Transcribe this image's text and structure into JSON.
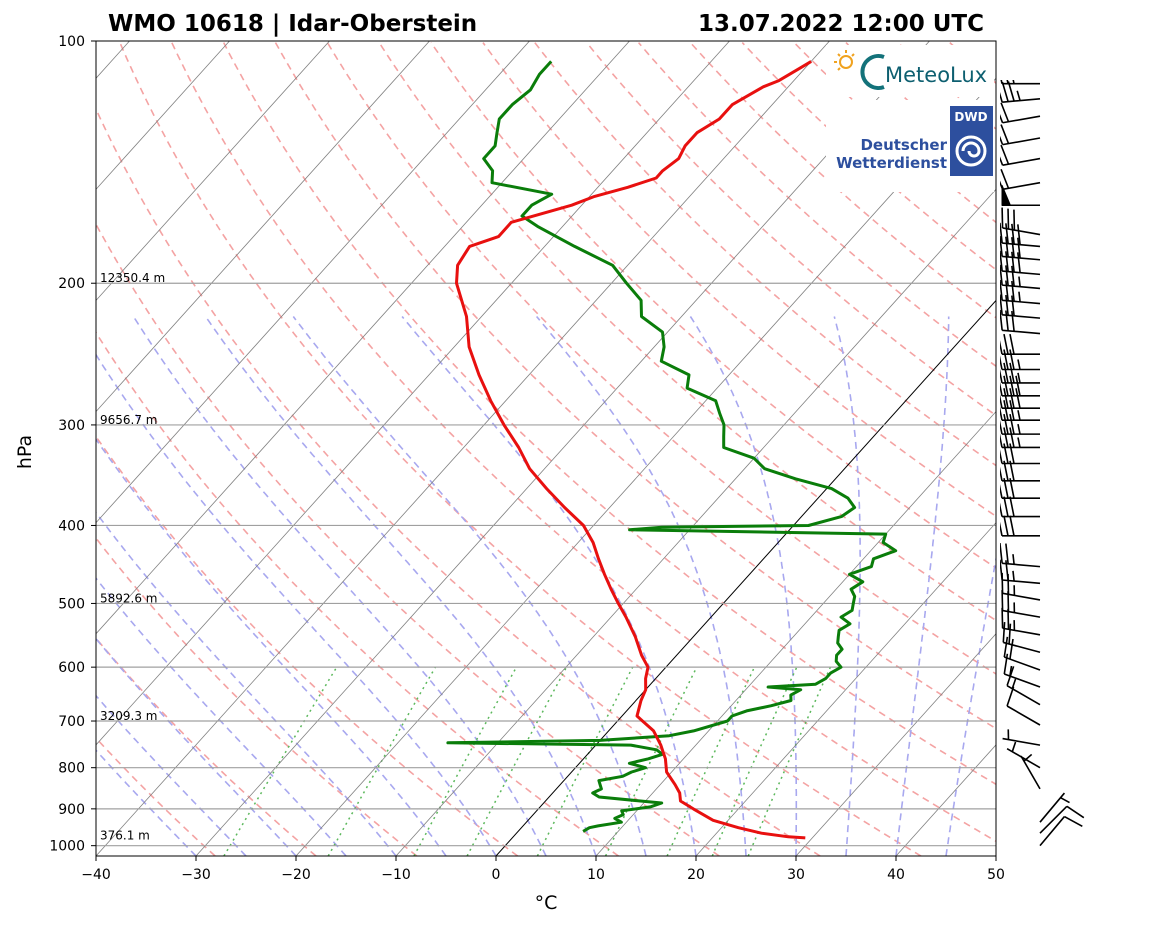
{
  "title_left": "WMO 10618 | Idar-Oberstein",
  "title_right": "13.07.2022 12:00 UTC",
  "logos": {
    "meteolux": "MeteoLux",
    "dwd_badge": "DWD",
    "dwd_line1": "Deutscher",
    "dwd_line2": "Wetterdienst"
  },
  "colors": {
    "temperature": "#e8100f",
    "dewpoint": "#0a7d0a",
    "dry_adiabat": "#f4a3a3",
    "moist_adiabat": "#a8a8ef",
    "mixing_ratio": "#5cb85c",
    "isotherm": "#808080",
    "isobar": "#a0a0a0"
  },
  "chart_data": {
    "type": "skew-t",
    "xlabel": "°C",
    "ylabel": "hPa",
    "xlim": [
      -40,
      50
    ],
    "ylim": [
      1030,
      100
    ],
    "y_scale": "log",
    "x_ticks": [
      -40,
      -30,
      -20,
      -10,
      0,
      10,
      20,
      30,
      40,
      50
    ],
    "x_tick_labels": [
      "−40",
      "−30",
      "−20",
      "−10",
      "0",
      "10",
      "20",
      "30",
      "40",
      "50"
    ],
    "y_ticks": [
      100,
      200,
      300,
      400,
      500,
      600,
      700,
      800,
      900,
      1000
    ],
    "y_tick_labels": [
      "100",
      "200",
      "300",
      "400",
      "500",
      "600",
      "700",
      "800",
      "900",
      "1000"
    ],
    "height_labels": [
      {
        "p": 200,
        "text": "12350.4 m"
      },
      {
        "p": 300,
        "text": "9656.7 m"
      },
      {
        "p": 500,
        "text": "5892.6 m"
      },
      {
        "p": 700,
        "text": "3209.3 m"
      },
      {
        "p": 985,
        "text": "376.1 m"
      }
    ],
    "highlighted_isotherm": 0,
    "temperature_profile": [
      [
        978,
        29.3
      ],
      [
        975,
        27.5
      ],
      [
        965,
        24.5
      ],
      [
        950,
        21.7
      ],
      [
        930,
        18.5
      ],
      [
        900,
        15.5
      ],
      [
        880,
        13.5
      ],
      [
        860,
        12.7
      ],
      [
        840,
        11.5
      ],
      [
        810,
        9.5
      ],
      [
        780,
        8.2
      ],
      [
        750,
        6.5
      ],
      [
        720,
        4.5
      ],
      [
        700,
        2.5
      ],
      [
        690,
        1.5
      ],
      [
        660,
        0.5
      ],
      [
        640,
        0
      ],
      [
        620,
        -1
      ],
      [
        600,
        -1.8
      ],
      [
        580,
        -3.5
      ],
      [
        550,
        -5.8
      ],
      [
        520,
        -8.5
      ],
      [
        500,
        -10.5
      ],
      [
        480,
        -12.5
      ],
      [
        460,
        -14.5
      ],
      [
        440,
        -16.5
      ],
      [
        420,
        -18.5
      ],
      [
        400,
        -21
      ],
      [
        380,
        -24.5
      ],
      [
        360,
        -28
      ],
      [
        340,
        -31.5
      ],
      [
        320,
        -34.5
      ],
      [
        300,
        -38
      ],
      [
        280,
        -41.5
      ],
      [
        260,
        -45
      ],
      [
        240,
        -48.5
      ],
      [
        220,
        -51.5
      ],
      [
        200,
        -55.5
      ],
      [
        190,
        -57
      ],
      [
        180,
        -57.5
      ],
      [
        175,
        -55.5
      ],
      [
        168,
        -55.5
      ],
      [
        160,
        -51
      ],
      [
        156,
        -49.5
      ],
      [
        152,
        -47
      ],
      [
        148,
        -45
      ],
      [
        145,
        -45
      ],
      [
        140,
        -44.5
      ],
      [
        135,
        -45
      ],
      [
        130,
        -45
      ],
      [
        125,
        -44
      ],
      [
        120,
        -44
      ],
      [
        118,
        -43.5
      ],
      [
        114,
        -42.5
      ],
      [
        112,
        -41.5
      ],
      [
        110,
        -41
      ],
      [
        108,
        -40.5
      ],
      [
        106,
        -40
      ]
    ],
    "dewpoint_profile": [
      [
        960,
        6.5
      ],
      [
        950,
        6.8
      ],
      [
        945,
        7.5
      ],
      [
        935,
        9.5
      ],
      [
        925,
        8.5
      ],
      [
        915,
        9
      ],
      [
        905,
        8.5
      ],
      [
        895,
        11
      ],
      [
        885,
        11.8
      ],
      [
        880,
        9.5
      ],
      [
        870,
        5
      ],
      [
        860,
        4
      ],
      [
        850,
        4.5
      ],
      [
        840,
        4
      ],
      [
        830,
        3.5
      ],
      [
        820,
        5.5
      ],
      [
        810,
        6
      ],
      [
        800,
        7
      ],
      [
        790,
        5
      ],
      [
        780,
        6.5
      ],
      [
        770,
        7.5
      ],
      [
        760,
        6.5
      ],
      [
        750,
        3.5
      ],
      [
        745,
        -15
      ],
      [
        740,
        0
      ],
      [
        730,
        6.5
      ],
      [
        720,
        8.5
      ],
      [
        700,
        11
      ],
      [
        690,
        11
      ],
      [
        680,
        12
      ],
      [
        670,
        14
      ],
      [
        660,
        15.5
      ],
      [
        650,
        15
      ],
      [
        640,
        15.5
      ],
      [
        635,
        12
      ],
      [
        630,
        16.5
      ],
      [
        620,
        17
      ],
      [
        610,
        17
      ],
      [
        600,
        17.5
      ],
      [
        590,
        16.5
      ],
      [
        580,
        16
      ],
      [
        570,
        16
      ],
      [
        560,
        15
      ],
      [
        550,
        14.5
      ],
      [
        540,
        14
      ],
      [
        530,
        14.5
      ],
      [
        520,
        13
      ],
      [
        510,
        13.5
      ],
      [
        500,
        13
      ],
      [
        490,
        12.5
      ],
      [
        480,
        11.5
      ],
      [
        470,
        12
      ],
      [
        460,
        10
      ],
      [
        450,
        11.5
      ],
      [
        440,
        11
      ],
      [
        430,
        12.5
      ],
      [
        420,
        10.5
      ],
      [
        410,
        10
      ],
      [
        405,
        -16
      ],
      [
        402,
        -13
      ],
      [
        400,
        1.5
      ],
      [
        390,
        4
      ],
      [
        380,
        4.5
      ],
      [
        370,
        3
      ],
      [
        360,
        0.5
      ],
      [
        350,
        -4
      ],
      [
        340,
        -8
      ],
      [
        330,
        -10
      ],
      [
        320,
        -14
      ],
      [
        310,
        -15
      ],
      [
        300,
        -16
      ],
      [
        290,
        -17.5
      ],
      [
        280,
        -19
      ],
      [
        270,
        -23
      ],
      [
        260,
        -24
      ],
      [
        250,
        -28
      ],
      [
        240,
        -29
      ],
      [
        230,
        -30.5
      ],
      [
        220,
        -34
      ],
      [
        210,
        -35.5
      ],
      [
        200,
        -38.5
      ],
      [
        190,
        -41.5
      ],
      [
        180,
        -47
      ],
      [
        170,
        -52.5
      ],
      [
        165,
        -55
      ],
      [
        160,
        -55
      ],
      [
        155,
        -54
      ],
      [
        150,
        -61
      ],
      [
        145,
        -62
      ],
      [
        140,
        -64
      ],
      [
        135,
        -64
      ],
      [
        130,
        -65
      ],
      [
        125,
        -66
      ],
      [
        120,
        -66
      ],
      [
        115,
        -65.5
      ],
      [
        110,
        -66
      ],
      [
        106,
        -66
      ]
    ],
    "wind_barbs": [
      {
        "p": 107,
        "dir": 270,
        "spd": 20
      },
      {
        "p": 113,
        "dir": 270,
        "spd": 25
      },
      {
        "p": 118,
        "dir": 265,
        "spd": 35
      },
      {
        "p": 124,
        "dir": 260,
        "spd": 20
      },
      {
        "p": 132,
        "dir": 260,
        "spd": 20
      },
      {
        "p": 140,
        "dir": 260,
        "spd": 20
      },
      {
        "p": 150,
        "dir": 260,
        "spd": 20
      },
      {
        "p": 160,
        "dir": 270,
        "spd": 50
      },
      {
        "p": 174,
        "dir": 280,
        "spd": 30
      },
      {
        "p": 180,
        "dir": 275,
        "spd": 40
      },
      {
        "p": 187,
        "dir": 275,
        "spd": 40
      },
      {
        "p": 195,
        "dir": 275,
        "spd": 40
      },
      {
        "p": 203,
        "dir": 275,
        "spd": 35
      },
      {
        "p": 212,
        "dir": 275,
        "spd": 35
      },
      {
        "p": 221,
        "dir": 275,
        "spd": 30
      },
      {
        "p": 231,
        "dir": 275,
        "spd": 30
      },
      {
        "p": 245,
        "dir": 270,
        "spd": 30
      },
      {
        "p": 256,
        "dir": 270,
        "spd": 35
      },
      {
        "p": 266,
        "dir": 270,
        "spd": 35
      },
      {
        "p": 276,
        "dir": 270,
        "spd": 40
      },
      {
        "p": 286,
        "dir": 270,
        "spd": 40
      },
      {
        "p": 296,
        "dir": 270,
        "spd": 35
      },
      {
        "p": 308,
        "dir": 270,
        "spd": 35
      },
      {
        "p": 320,
        "dir": 270,
        "spd": 35
      },
      {
        "p": 335,
        "dir": 270,
        "spd": 30
      },
      {
        "p": 352,
        "dir": 270,
        "spd": 30
      },
      {
        "p": 370,
        "dir": 270,
        "spd": 30
      },
      {
        "p": 390,
        "dir": 270,
        "spd": 30
      },
      {
        "p": 412,
        "dir": 270,
        "spd": 30
      },
      {
        "p": 450,
        "dir": 275,
        "spd": 25
      },
      {
        "p": 472,
        "dir": 275,
        "spd": 25
      },
      {
        "p": 495,
        "dir": 280,
        "spd": 25
      },
      {
        "p": 520,
        "dir": 280,
        "spd": 25
      },
      {
        "p": 547,
        "dir": 280,
        "spd": 25
      },
      {
        "p": 575,
        "dir": 285,
        "spd": 20
      },
      {
        "p": 605,
        "dir": 290,
        "spd": 20
      },
      {
        "p": 635,
        "dir": 290,
        "spd": 15
      },
      {
        "p": 668,
        "dir": 300,
        "spd": 15
      },
      {
        "p": 708,
        "dir": 300,
        "spd": 10
      },
      {
        "p": 750,
        "dir": 280,
        "spd": 5
      },
      {
        "p": 800,
        "dir": 300,
        "spd": 5
      },
      {
        "p": 850,
        "dir": 330,
        "spd": 5
      },
      {
        "p": 935,
        "dir": 40,
        "spd": 5
      },
      {
        "p": 965,
        "dir": 45,
        "spd": 10
      },
      {
        "p": 1000,
        "dir": 40,
        "spd": 10
      }
    ],
    "background_lines": {
      "isotherms_step": 10,
      "isobars": [
        200,
        300,
        400,
        500,
        600,
        700,
        800,
        900,
        1000
      ],
      "dry_adiabat_thetas_k": [
        243,
        253,
        263,
        273,
        283,
        293,
        303,
        313,
        323,
        333,
        343,
        353,
        363,
        373,
        383,
        393,
        403,
        413,
        423,
        433,
        443,
        453,
        463,
        473
      ],
      "moist_adiabat_start_c": [
        -30,
        -25,
        -20,
        -15,
        -10,
        -5,
        0,
        5,
        10,
        15,
        20,
        25,
        30,
        35,
        40,
        45
      ],
      "mixing_ratios_gkg": [
        0.4,
        1,
        2,
        3,
        5,
        8,
        12,
        16,
        20
      ],
      "grid": true
    }
  }
}
